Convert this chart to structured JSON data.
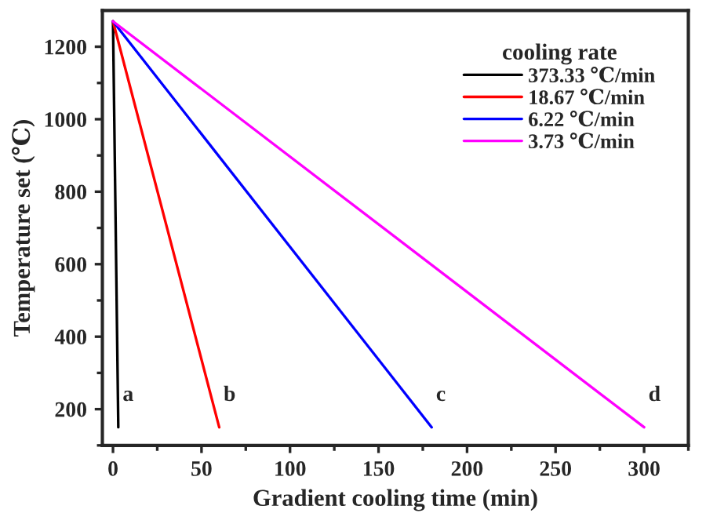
{
  "chart_data": {
    "type": "line",
    "xlabel": "Gradient cooling time (min)",
    "ylabel": "Temperature set (℃)",
    "legend_title": "cooling rate",
    "series": [
      {
        "name": "373.33 ℃/min",
        "color": "#000000",
        "x": [
          0,
          3
        ],
        "values": [
          1270,
          150
        ]
      },
      {
        "name": "18.67 ℃/min",
        "color": "#ff0000",
        "x": [
          0,
          60
        ],
        "values": [
          1270,
          150
        ]
      },
      {
        "name": "6.22 ℃/min",
        "color": "#0000ff",
        "x": [
          0,
          180
        ],
        "values": [
          1270,
          150
        ]
      },
      {
        "name": "3.73 ℃/min",
        "color": "#ff00ff",
        "x": [
          0,
          300
        ],
        "values": [
          1270,
          150
        ]
      }
    ],
    "annotations": [
      "a",
      "b",
      "c",
      "d"
    ],
    "xlim": [
      -6,
      325
    ],
    "xticks": [
      0,
      50,
      100,
      150,
      200,
      250,
      300
    ],
    "ylim": [
      100,
      1300
    ],
    "yticks": [
      200,
      400,
      600,
      800,
      1000,
      1200
    ],
    "grid": false,
    "legend": "top right",
    "marker": "none",
    "line_style": "solid"
  }
}
